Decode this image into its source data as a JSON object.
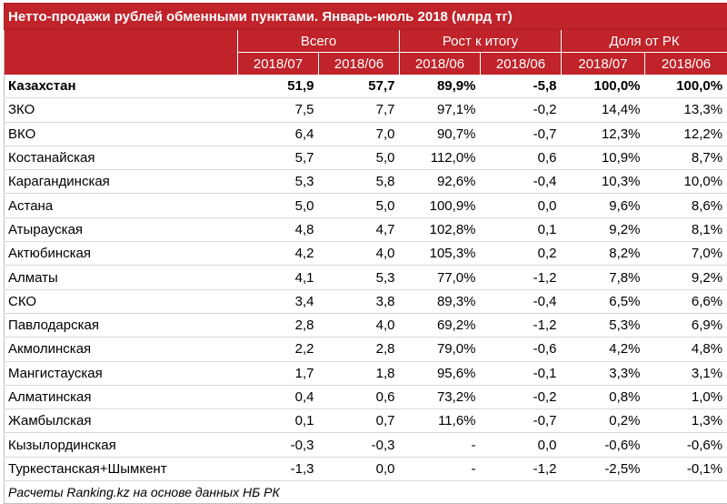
{
  "chart_data": {
    "type": "table",
    "title": "Нетто-продажи рублей обменными пунктами. Январь-июль 2018 (млрд тг)",
    "group_headers": [
      "Всего",
      "Рост к итогу",
      "Доля от РК"
    ],
    "sub_headers": [
      "2018/07",
      "2018/06",
      "2018/06",
      "2018/06",
      "2018/07",
      "2018/06"
    ],
    "rows": [
      {
        "name": "Казахстан",
        "bold": true,
        "values": [
          "51,9",
          "57,7",
          "89,9%",
          "-5,8",
          "100,0%",
          "100,0%"
        ]
      },
      {
        "name": "ЗКО",
        "values": [
          "7,5",
          "7,7",
          "97,1%",
          "-0,2",
          "14,4%",
          "13,3%"
        ]
      },
      {
        "name": "ВКО",
        "values": [
          "6,4",
          "7,0",
          "90,7%",
          "-0,7",
          "12,3%",
          "12,2%"
        ]
      },
      {
        "name": "Костанайская",
        "values": [
          "5,7",
          "5,0",
          "112,0%",
          "0,6",
          "10,9%",
          "8,7%"
        ]
      },
      {
        "name": "Карагандинская",
        "values": [
          "5,3",
          "5,8",
          "92,6%",
          "-0,4",
          "10,3%",
          "10,0%"
        ]
      },
      {
        "name": "Астана",
        "values": [
          "5,0",
          "5,0",
          "100,9%",
          "0,0",
          "9,6%",
          "8,6%"
        ]
      },
      {
        "name": "Атырауская",
        "values": [
          "4,8",
          "4,7",
          "102,8%",
          "0,1",
          "9,2%",
          "8,1%"
        ]
      },
      {
        "name": "Актюбинская",
        "values": [
          "4,2",
          "4,0",
          "105,3%",
          "0,2",
          "8,2%",
          "7,0%"
        ]
      },
      {
        "name": "Алматы",
        "values": [
          "4,1",
          "5,3",
          "77,0%",
          "-1,2",
          "7,8%",
          "9,2%"
        ]
      },
      {
        "name": "СКО",
        "values": [
          "3,4",
          "3,8",
          "89,3%",
          "-0,4",
          "6,5%",
          "6,6%"
        ]
      },
      {
        "name": "Павлодарская",
        "values": [
          "2,8",
          "4,0",
          "69,2%",
          "-1,2",
          "5,3%",
          "6,9%"
        ]
      },
      {
        "name": "Акмолинская",
        "values": [
          "2,2",
          "2,8",
          "79,0%",
          "-0,6",
          "4,2%",
          "4,8%"
        ]
      },
      {
        "name": "Мангистауская",
        "values": [
          "1,7",
          "1,8",
          "95,6%",
          "-0,1",
          "3,3%",
          "3,1%"
        ]
      },
      {
        "name": "Алматинская",
        "values": [
          "0,4",
          "0,6",
          "73,2%",
          "-0,2",
          "0,8%",
          "1,0%"
        ]
      },
      {
        "name": "Жамбылская",
        "values": [
          "0,1",
          "0,7",
          "11,6%",
          "-0,7",
          "0,2%",
          "1,3%"
        ]
      },
      {
        "name": "Кызылординская",
        "values": [
          "-0,3",
          "-0,3",
          "-",
          "0,0",
          "-0,6%",
          "-0,6%"
        ]
      },
      {
        "name": "Туркестанская+Шымкент",
        "values": [
          "-1,3",
          "0,0",
          "-",
          "-1,2",
          "-2,5%",
          "-0,1%"
        ]
      }
    ],
    "footnote": "Расчеты Ranking.kz на основе данных НБ РК"
  }
}
